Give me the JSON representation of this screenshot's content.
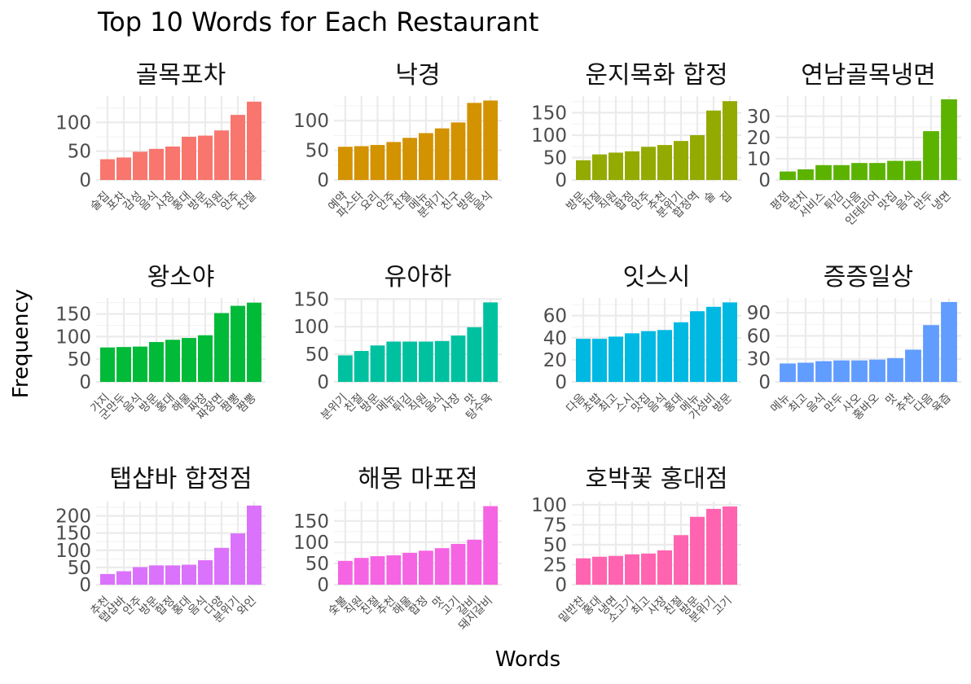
{
  "chart_data": {
    "type": "bar",
    "title": "Top 10 Words for Each Restaurant",
    "xlabel": "Words",
    "ylabel": "Frequency",
    "grid": true,
    "panels": [
      {
        "name": "골목포차",
        "color": "#F8766D",
        "ticks": [
          0,
          50,
          100
        ],
        "ylim": [
          0,
          140
        ],
        "categories": [
          "술집",
          "포차",
          "감성",
          "음식",
          "사장",
          "홍대",
          "방문",
          "직원",
          "안주",
          "친절"
        ],
        "values": [
          36,
          39,
          49,
          54,
          58,
          75,
          77,
          86,
          113,
          136
        ]
      },
      {
        "name": "낙경",
        "color": "#D39200",
        "ticks": [
          0,
          50,
          100
        ],
        "ylim": [
          0,
          136
        ],
        "categories": [
          "예약",
          "파스타",
          "요리",
          "안주",
          "친절",
          "메뉴",
          "분위기",
          "친구",
          "방문",
          "음식"
        ],
        "values": [
          56,
          57,
          59,
          64,
          71,
          79,
          87,
          97,
          130,
          134
        ]
      },
      {
        "name": "운지목화 합정",
        "color": "#93AA00",
        "ticks": [
          0,
          50,
          100,
          150
        ],
        "ylim": [
          0,
          180
        ],
        "categories": [
          "방문",
          "친절",
          "직원",
          "합정",
          "안주",
          "추천",
          "분위기",
          "합정역",
          "술",
          "집"
        ],
        "values": [
          44,
          57,
          61,
          64,
          74,
          78,
          87,
          100,
          155,
          176
        ]
      },
      {
        "name": "연남골목냉면",
        "color": "#5BB300",
        "ticks": [
          0,
          10,
          20,
          30
        ],
        "ylim": [
          0,
          38
        ],
        "categories": [
          "평점",
          "런치",
          "서비스",
          "튀김",
          "다음",
          "인테리어",
          "맛집",
          "음식",
          "만두",
          "냉면"
        ],
        "values": [
          4,
          5,
          7,
          7,
          8,
          8,
          9,
          9,
          23,
          38
        ]
      },
      {
        "name": "왕소야",
        "color": "#00BA38",
        "ticks": [
          0,
          50,
          100,
          150
        ],
        "ylim": [
          0,
          178
        ],
        "categories": [
          "가지",
          "군만두",
          "음식",
          "방문",
          "홍대",
          "해물",
          "짜장",
          "짜장면",
          "짬뽕",
          "짬뽕"
        ],
        "values": [
          76,
          77,
          78,
          88,
          93,
          97,
          103,
          152,
          168,
          175
        ]
      },
      {
        "name": "유아하",
        "color": "#00C19F",
        "ticks": [
          0,
          50,
          100,
          150
        ],
        "ylim": [
          0,
          146
        ],
        "categories": [
          "분위기",
          "친절",
          "방문",
          "메뉴",
          "튀김",
          "직원",
          "음식",
          "사장",
          "맛",
          "탕수육"
        ],
        "values": [
          48,
          56,
          66,
          73,
          73,
          73,
          74,
          84,
          99,
          144
        ]
      },
      {
        "name": "잇스시",
        "color": "#00B9E3",
        "ticks": [
          0,
          20,
          40,
          60
        ],
        "ylim": [
          0,
          73
        ],
        "categories": [
          "다음",
          "초밥",
          "최고",
          "스시",
          "맛집",
          "음식",
          "홍대",
          "메뉴",
          "가성비",
          "방문"
        ],
        "values": [
          39,
          39,
          41,
          44,
          46,
          47,
          54,
          64,
          68,
          72
        ]
      },
      {
        "name": "증증일상",
        "color": "#619CFF",
        "ticks": [
          0,
          30,
          60,
          90
        ],
        "ylim": [
          0,
          105
        ],
        "categories": [
          "메뉴",
          "최고",
          "음식",
          "만두",
          "사오",
          "홍바오",
          "맛",
          "추천",
          "다음",
          "육즙"
        ],
        "values": [
          24,
          25,
          27,
          28,
          28,
          29,
          31,
          42,
          74,
          104
        ]
      },
      {
        "name": "탭샵바 합정점",
        "color": "#DB72FB",
        "ticks": [
          0,
          50,
          100,
          150,
          200
        ],
        "ylim": [
          0,
          232
        ],
        "categories": [
          "추천",
          "탭샵바",
          "안주",
          "방문",
          "합정",
          "홍대",
          "음식",
          "다양",
          "분위기",
          "와인"
        ],
        "values": [
          31,
          39,
          51,
          56,
          56,
          58,
          71,
          107,
          149,
          230
        ]
      },
      {
        "name": "해몽 마포점",
        "color": "#F564E3",
        "ticks": [
          0,
          50,
          100,
          150
        ],
        "ylim": [
          0,
          188
        ],
        "categories": [
          "숯불",
          "직원",
          "친절",
          "추천",
          "해물",
          "합정",
          "맛",
          "고기",
          "갈비",
          "돼지갈비"
        ],
        "values": [
          56,
          63,
          67,
          69,
          75,
          80,
          86,
          96,
          106,
          185
        ]
      },
      {
        "name": "호박꽃 홍대점",
        "color": "#FF64B0",
        "ticks": [
          0,
          25,
          50,
          75,
          100
        ],
        "ylim": [
          0,
          100
        ],
        "categories": [
          "밑반찬",
          "홍대",
          "냉면",
          "소고기",
          "최고",
          "사장",
          "친절",
          "방문",
          "분위기",
          "고기"
        ],
        "values": [
          33,
          35,
          36,
          38,
          39,
          43,
          62,
          85,
          95,
          98
        ]
      }
    ]
  }
}
